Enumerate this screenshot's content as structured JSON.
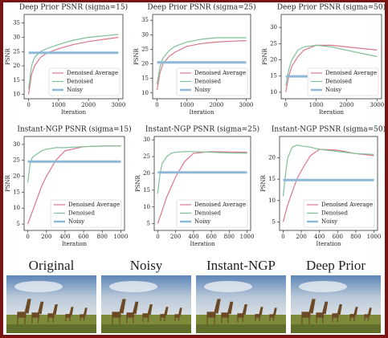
{
  "chart_data": [
    {
      "type": "line",
      "title": "Deep Prior PSNR (sigma=15)",
      "x_label": "Iteration",
      "y_label": "PSNR",
      "x": [
        0,
        100,
        200,
        400,
        600,
        1000,
        1500,
        2000,
        2500,
        3000
      ],
      "xlim": [
        -150,
        3150
      ],
      "xticks": [
        0,
        1000,
        2000,
        3000
      ],
      "ylim": [
        8.5,
        38
      ],
      "yticks": [
        10,
        15,
        20,
        25,
        30,
        35
      ],
      "series": [
        {
          "name": "Denoised Average",
          "color": "#d9778a",
          "values": [
            10,
            17,
            20,
            23,
            24.5,
            26,
            27.5,
            28.5,
            29.3,
            30
          ]
        },
        {
          "name": "Denoised",
          "color": "#7fbf98",
          "values": [
            12,
            20,
            23,
            25,
            26,
            27.5,
            29,
            30,
            30.5,
            31
          ]
        },
        {
          "name": "Noisy",
          "color": "#8fb9d9",
          "values": [
            24.6,
            24.6,
            24.6,
            24.6,
            24.6,
            24.6,
            24.6,
            24.6,
            24.6,
            24.6
          ]
        }
      ]
    },
    {
      "type": "line",
      "title": "Deep Prior PSNR (sigma=25)",
      "x_label": "Iteration",
      "y_label": "PSNR",
      "x": [
        0,
        100,
        200,
        400,
        600,
        1000,
        1500,
        2000,
        2500,
        3000
      ],
      "xlim": [
        -150,
        3150
      ],
      "xticks": [
        0,
        1000,
        2000,
        3000
      ],
      "ylim": [
        8,
        37
      ],
      "yticks": [
        10,
        15,
        20,
        25,
        30,
        35
      ],
      "series": [
        {
          "name": "Denoised Average",
          "color": "#d9778a",
          "values": [
            11,
            17,
            20,
            22.5,
            24,
            26,
            27,
            27.5,
            27.8,
            28
          ]
        },
        {
          "name": "Denoised",
          "color": "#7fbf98",
          "values": [
            13,
            19,
            22,
            24.5,
            26,
            27.5,
            28.5,
            29,
            29,
            29
          ]
        },
        {
          "name": "Noisy",
          "color": "#8fb9d9",
          "values": [
            20.5,
            20.5,
            20.5,
            20.5,
            20.5,
            20.5,
            20.5,
            20.5,
            20.5,
            20.5
          ]
        }
      ]
    },
    {
      "type": "line",
      "title": "Deep Prior PSNR (sigma=50)",
      "x_label": "Iteration",
      "y_label": "PSNR",
      "x": [
        0,
        100,
        200,
        400,
        600,
        1000,
        1500,
        2000,
        2500,
        3000
      ],
      "xlim": [
        -150,
        3150
      ],
      "xticks": [
        0,
        1000,
        2000,
        3000
      ],
      "ylim": [
        8,
        34
      ],
      "yticks": [
        10,
        15,
        20,
        25,
        30
      ],
      "series": [
        {
          "name": "Denoised Average",
          "color": "#d9778a",
          "values": [
            10,
            15,
            18,
            21,
            23,
            24.5,
            24.5,
            24,
            23.5,
            23
          ]
        },
        {
          "name": "Denoised",
          "color": "#7fbf98",
          "values": [
            12,
            17,
            20,
            23,
            24,
            24.5,
            24,
            23,
            22,
            21
          ]
        },
        {
          "name": "Noisy",
          "color": "#8fb9d9",
          "values": [
            14.9,
            14.9,
            14.9,
            14.9,
            14.9,
            14.9,
            14.9,
            14.9,
            14.9,
            14.9
          ]
        }
      ]
    },
    {
      "type": "line",
      "title": "Instant-NGP PSNR (sigma=15)",
      "x_label": "Iteration",
      "y_label": "PSNR",
      "x": [
        0,
        25,
        50,
        100,
        150,
        200,
        300,
        400,
        600,
        800,
        1000
      ],
      "xlim": [
        -40,
        1040
      ],
      "xticks": [
        0,
        200,
        400,
        600,
        800,
        1000
      ],
      "ylim": [
        3,
        32.5
      ],
      "yticks": [
        5,
        10,
        15,
        20,
        25,
        30
      ],
      "series": [
        {
          "name": "Denoised Average",
          "color": "#d9778a",
          "values": [
            5,
            7,
            9,
            13,
            17,
            20,
            25,
            28,
            29.3,
            29.5,
            29.5
          ]
        },
        {
          "name": "Denoised",
          "color": "#7fbf98",
          "values": [
            18,
            24,
            26,
            27,
            28,
            28.5,
            29,
            29,
            29.3,
            29.5,
            29.5
          ]
        },
        {
          "name": "Noisy",
          "color": "#8fb9d9",
          "values": [
            24.6,
            24.6,
            24.6,
            24.6,
            24.6,
            24.6,
            24.6,
            24.6,
            24.6,
            24.6,
            24.6
          ]
        }
      ]
    },
    {
      "type": "line",
      "title": "Instant-NGP PSNR (sigma=25)",
      "x_label": "Iteration",
      "y_label": "PSNR",
      "x": [
        0,
        25,
        50,
        100,
        150,
        200,
        300,
        400,
        600,
        800,
        1000
      ],
      "xlim": [
        -40,
        1040
      ],
      "xticks": [
        0,
        200,
        400,
        600,
        800,
        1000
      ],
      "ylim": [
        3,
        31
      ],
      "yticks": [
        5,
        10,
        15,
        20,
        25,
        30
      ],
      "series": [
        {
          "name": "Denoised Average",
          "color": "#d9778a",
          "values": [
            5,
            7,
            9,
            13,
            16,
            19,
            23.5,
            26,
            26.5,
            26.4,
            26.3
          ]
        },
        {
          "name": "Denoised",
          "color": "#7fbf98",
          "values": [
            14,
            20,
            23,
            25,
            26,
            26.3,
            26.5,
            26.5,
            26.3,
            26.1,
            26
          ]
        },
        {
          "name": "Noisy",
          "color": "#8fb9d9",
          "values": [
            20.3,
            20.3,
            20.3,
            20.3,
            20.3,
            20.3,
            20.3,
            20.3,
            20.3,
            20.3,
            20.3
          ]
        }
      ]
    },
    {
      "type": "line",
      "title": "Instant-NGP PSNR (sigma=50)",
      "x_label": "Iteration",
      "y_label": "PSNR",
      "x": [
        0,
        25,
        50,
        100,
        150,
        200,
        300,
        400,
        600,
        800,
        1000
      ],
      "xlim": [
        -40,
        1040
      ],
      "xticks": [
        0,
        200,
        400,
        600,
        800,
        1000
      ],
      "ylim": [
        3,
        25
      ],
      "yticks": [
        5,
        10,
        15,
        20
      ],
      "series": [
        {
          "name": "Denoised Average",
          "color": "#d9778a",
          "values": [
            5,
            7,
            9,
            12,
            15,
            17,
            20.5,
            22,
            21.8,
            21,
            20.5
          ]
        },
        {
          "name": "Denoised",
          "color": "#7fbf98",
          "values": [
            11,
            16,
            20,
            22.5,
            23,
            22.8,
            22.5,
            22,
            21.5,
            21,
            20.8
          ]
        },
        {
          "name": "Noisy",
          "color": "#8fb9d9",
          "values": [
            14.8,
            14.8,
            14.8,
            14.8,
            14.8,
            14.8,
            14.8,
            14.8,
            14.8,
            14.8,
            14.8
          ]
        }
      ]
    }
  ],
  "images": {
    "captions": [
      "Original",
      "Noisy",
      "Instant-NGP",
      "Deep Prior"
    ]
  }
}
